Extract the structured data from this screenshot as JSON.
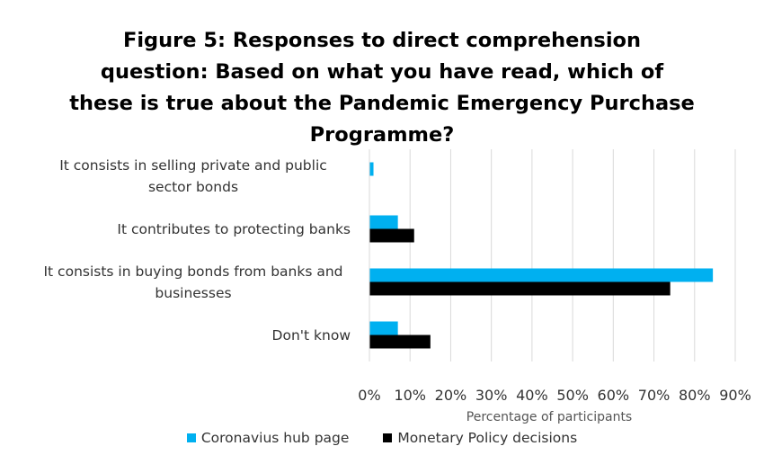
{
  "chart_data": {
    "type": "bar",
    "orientation": "horizontal",
    "title": "Figure 5: Responses to direct comprehension question: Based on what you have read, which of these is true about the Pandemic Emergency Purchase Programme?",
    "categories": [
      "It consists in selling private and public sector bonds",
      "It contributes to protecting banks",
      "It consists in buying bonds from banks and businesses",
      "Don't know"
    ],
    "series": [
      {
        "name": "Coronavius hub page",
        "color": "#00b0f0",
        "values": [
          1,
          7,
          84.5,
          7
        ]
      },
      {
        "name": "Monetary Policy decisions",
        "color": "#000000",
        "values": [
          0,
          11,
          74,
          15
        ]
      }
    ],
    "xlabel": "Percentage of participants",
    "xlim": [
      0,
      90
    ],
    "xticks": [
      {
        "value": 0,
        "label": "0%"
      },
      {
        "value": 10,
        "label": "10%"
      },
      {
        "value": 20,
        "label": "20%"
      },
      {
        "value": 30,
        "label": "30%"
      },
      {
        "value": 40,
        "label": "40%"
      },
      {
        "value": 50,
        "label": "50%"
      },
      {
        "value": 60,
        "label": "60%"
      },
      {
        "value": 70,
        "label": "70%"
      },
      {
        "value": 80,
        "label": "80%"
      },
      {
        "value": 90,
        "label": "90%"
      }
    ],
    "grid": true,
    "legend": "bottom"
  }
}
